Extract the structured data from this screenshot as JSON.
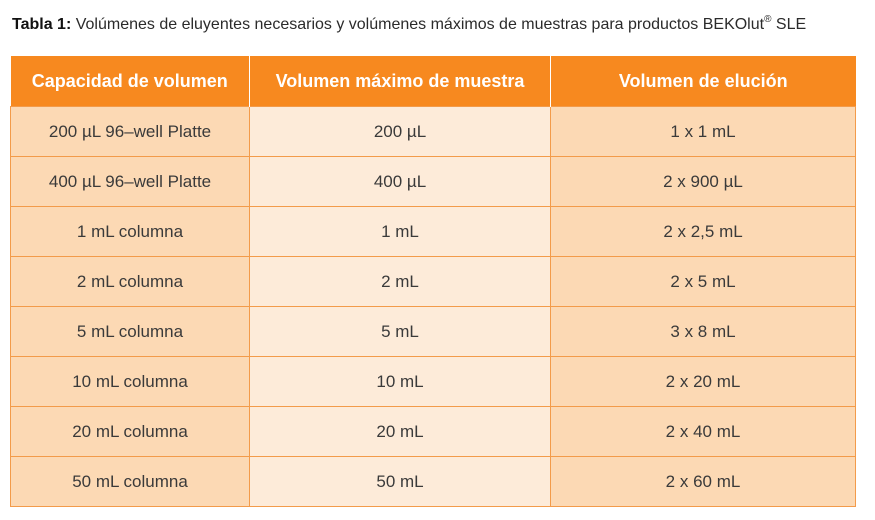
{
  "caption": {
    "label": "Tabla 1:",
    "text": " Volúmenes de eluyentes necesarios y volúmenes máximos de muestras para productos BEKOlut",
    "mark": "®",
    "suffix": " SLE"
  },
  "table": {
    "headers": [
      "Capacidad de volumen",
      "Volumen máximo de muestra",
      "Volumen de elución"
    ],
    "rows": [
      [
        "200 µL 96–well Platte",
        "200 µL",
        "1 x 1 mL"
      ],
      [
        "400 µL 96–well Platte",
        "400 µL",
        "2 x 900 µL"
      ],
      [
        "1 mL columna",
        "1 mL",
        "2 x 2,5 mL"
      ],
      [
        "2 mL columna",
        "2 mL",
        "2 x 5 mL"
      ],
      [
        "5 mL columna",
        "5 mL",
        "3 x 8 mL"
      ],
      [
        "10 mL columna",
        "10 mL",
        "2 x 20 mL"
      ],
      [
        "20 mL columna",
        "20 mL",
        "2 x 40 mL"
      ],
      [
        "50 mL columna",
        "50 mL",
        "2 x 60 mL"
      ]
    ]
  },
  "colors": {
    "header_bg": "#f7891f",
    "cell_light": "#fdebd9",
    "cell_mid": "#fcd9b4",
    "border": "#f39b4a"
  }
}
